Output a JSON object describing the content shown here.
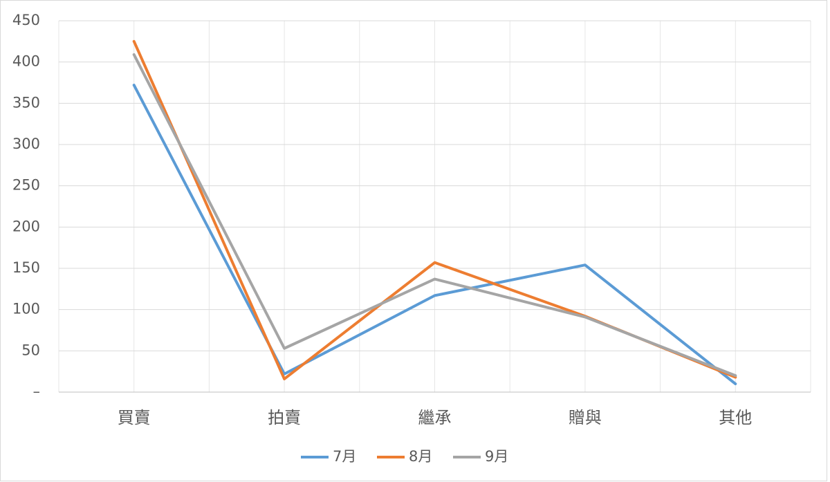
{
  "chart_data": {
    "type": "line",
    "categories": [
      "買賣",
      "拍賣",
      "繼承",
      "贈與",
      "其他"
    ],
    "series": [
      {
        "name": "7月",
        "color": "#5b9bd5",
        "values": [
          372,
          22,
          117,
          154,
          10
        ]
      },
      {
        "name": "8月",
        "color": "#ed7d31",
        "values": [
          425,
          16,
          157,
          92,
          18
        ]
      },
      {
        "name": "9月",
        "color": "#a5a5a5",
        "values": [
          409,
          53,
          137,
          91,
          20
        ]
      }
    ],
    "ylim": [
      0,
      450
    ],
    "yticks": [
      {
        "value": 0,
        "label": "–"
      },
      50,
      100,
      150,
      200,
      250,
      300,
      350,
      400,
      450
    ],
    "grid": true,
    "legend": "bottom"
  }
}
